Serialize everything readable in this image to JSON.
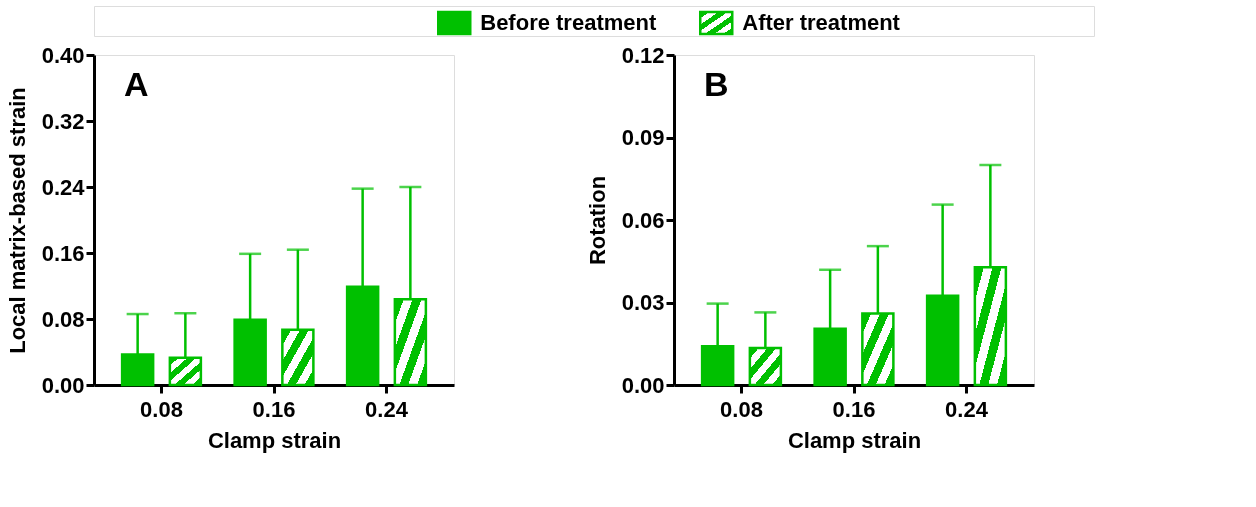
{
  "chart_data": [
    {
      "type": "bar",
      "annotations": [
        "A"
      ],
      "xlabel": "Clamp strain",
      "ylabel": "Local matrix-based strain",
      "categories": [
        "0.08",
        "0.16",
        "0.24"
      ],
      "legend": "top",
      "grid": false,
      "series": [
        {
          "name": "Before treatment",
          "color": "#00c000",
          "values": [
            0.037,
            0.079,
            0.119
          ],
          "errors": [
            [
              0.037,
              0.086
            ],
            [
              0.079,
              0.159
            ],
            [
              0.119,
              0.238
            ]
          ]
        },
        {
          "name": "After treatment",
          "color": "#00c000",
          "values": [
            0.033,
            0.067,
            0.104
          ],
          "errors": [
            [
              0.033,
              0.087
            ],
            [
              0.067,
              0.164
            ],
            [
              0.104,
              0.24
            ]
          ]
        }
      ],
      "ylim": [
        0,
        0.4
      ],
      "yticks": [
        {
          "value": 0,
          "label": "0.00"
        },
        0.08,
        0.16,
        0.24,
        0.32,
        {
          "value": 0.4,
          "label": "0.40"
        }
      ]
    },
    {
      "type": "bar",
      "annotations": [
        "B"
      ],
      "xlabel": "Clamp strain",
      "ylabel": "Rotation",
      "categories": [
        "0.08",
        "0.16",
        "0.24"
      ],
      "grid": false,
      "series": [
        {
          "color": "#00c000",
          "values": [
            0.0141,
            0.0205,
            0.0325
          ],
          "errors": [
            [
              0.0141,
              0.0296
            ],
            [
              0.0205,
              0.0419
            ],
            [
              0.0325,
              0.0656
            ]
          ]
        },
        {
          "color": "#00c000",
          "values": [
            0.0135,
            0.026,
            0.0428
          ],
          "errors": [
            [
              0.0135,
              0.0264
            ],
            [
              0.026,
              0.0505
            ],
            [
              0.0428,
              0.08
            ]
          ]
        }
      ],
      "ylim": [
        0,
        0.12
      ],
      "yticks": [
        {
          "value": 0,
          "label": "0.00"
        },
        {
          "value": 0.03,
          "label": "0.03"
        },
        {
          "value": 0.06,
          "label": "0.06"
        },
        {
          "value": 0.09,
          "label": "0.09"
        },
        {
          "value": 0.12,
          "label": "0.12"
        }
      ]
    }
  ]
}
